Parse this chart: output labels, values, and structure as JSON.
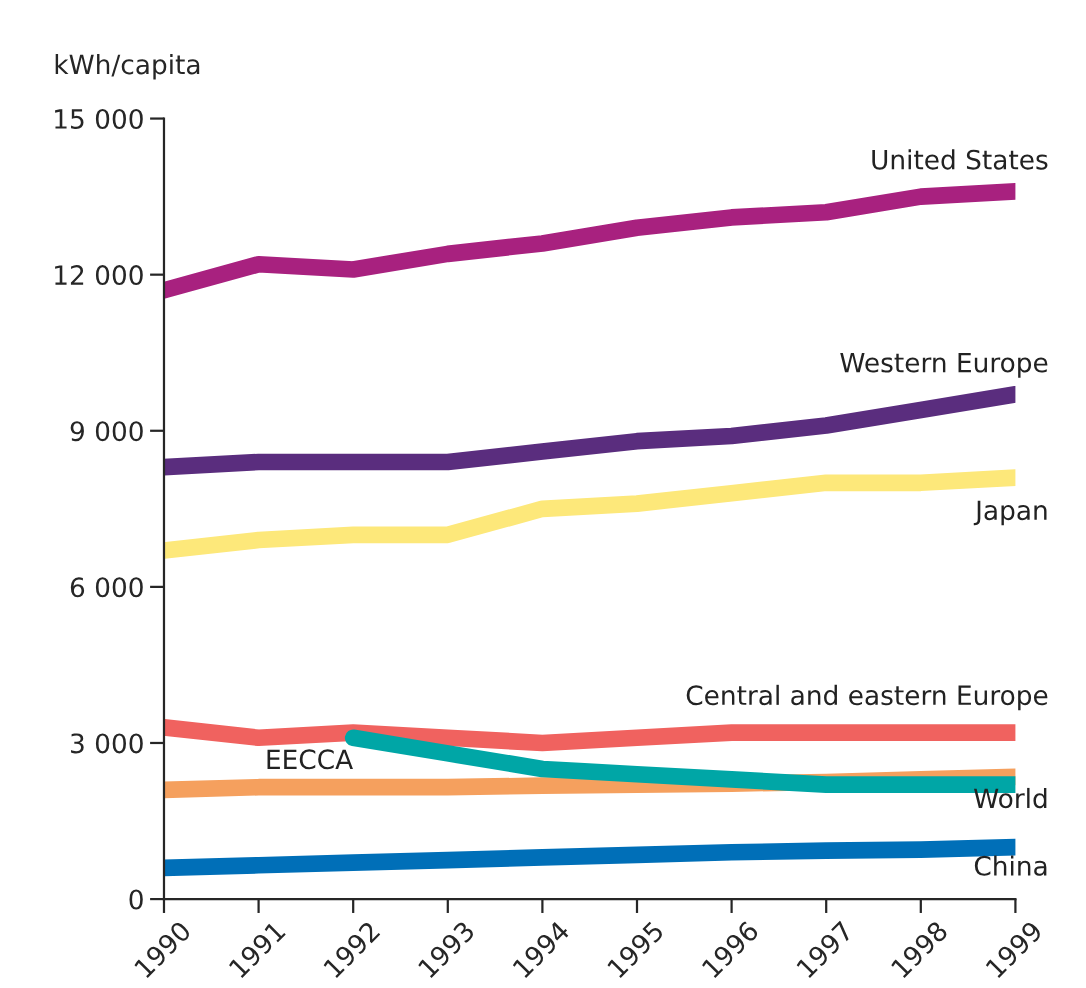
{
  "chart_data": {
    "type": "line",
    "ylabel": "kWh/capita",
    "x": [
      1990,
      1991,
      1992,
      1993,
      1994,
      1995,
      1996,
      1997,
      1998,
      1999
    ],
    "xlim": [
      1990,
      1999
    ],
    "xticks": [
      1990,
      1991,
      1992,
      1993,
      1994,
      1995,
      1996,
      1997,
      1998,
      1999
    ],
    "ylim": [
      0,
      15000
    ],
    "yticks": [
      {
        "value": 0,
        "label": "0"
      },
      {
        "value": 3000,
        "label": "3 000"
      },
      {
        "value": 6000,
        "label": "6 000"
      },
      {
        "value": 9000,
        "label": "9 000"
      },
      {
        "value": 12000,
        "label": "12 000"
      },
      {
        "value": 15000,
        "label": "15 000"
      }
    ],
    "grid": false,
    "legend": false,
    "marker": "none",
    "line_style": "solid",
    "series": [
      {
        "name": "United States",
        "color": "#a8217f",
        "values": [
          11700,
          12200,
          12100,
          12400,
          12600,
          12900,
          13100,
          13200,
          13500,
          13600
        ]
      },
      {
        "name": "Western Europe",
        "color": "#5a2d7e",
        "values": [
          8300,
          8400,
          8400,
          8400,
          8600,
          8800,
          8900,
          9100,
          9400,
          9700
        ]
      },
      {
        "name": "Japan",
        "color": "#fde87a",
        "values": [
          6700,
          6900,
          7000,
          7000,
          7500,
          7600,
          7800,
          8000,
          8000,
          8100
        ]
      },
      {
        "name": "Central and eastern Europe",
        "color": "#f0625f",
        "values": [
          3300,
          3100,
          3200,
          3100,
          3000,
          3100,
          3200,
          3200,
          3200,
          3200
        ]
      },
      {
        "name": "World",
        "color": "#f5a05e",
        "values": [
          2100,
          2150,
          2150,
          2150,
          2180,
          2200,
          2220,
          2250,
          2300,
          2350
        ]
      },
      {
        "name": "EECCA",
        "color": "#00a6a6",
        "values": [
          null,
          null,
          3100,
          2800,
          2500,
          2400,
          2300,
          2200,
          2200,
          2200
        ]
      },
      {
        "name": "China",
        "color": "#006fb8",
        "values": [
          600,
          650,
          700,
          750,
          800,
          850,
          900,
          930,
          950,
          1000
        ]
      }
    ]
  }
}
